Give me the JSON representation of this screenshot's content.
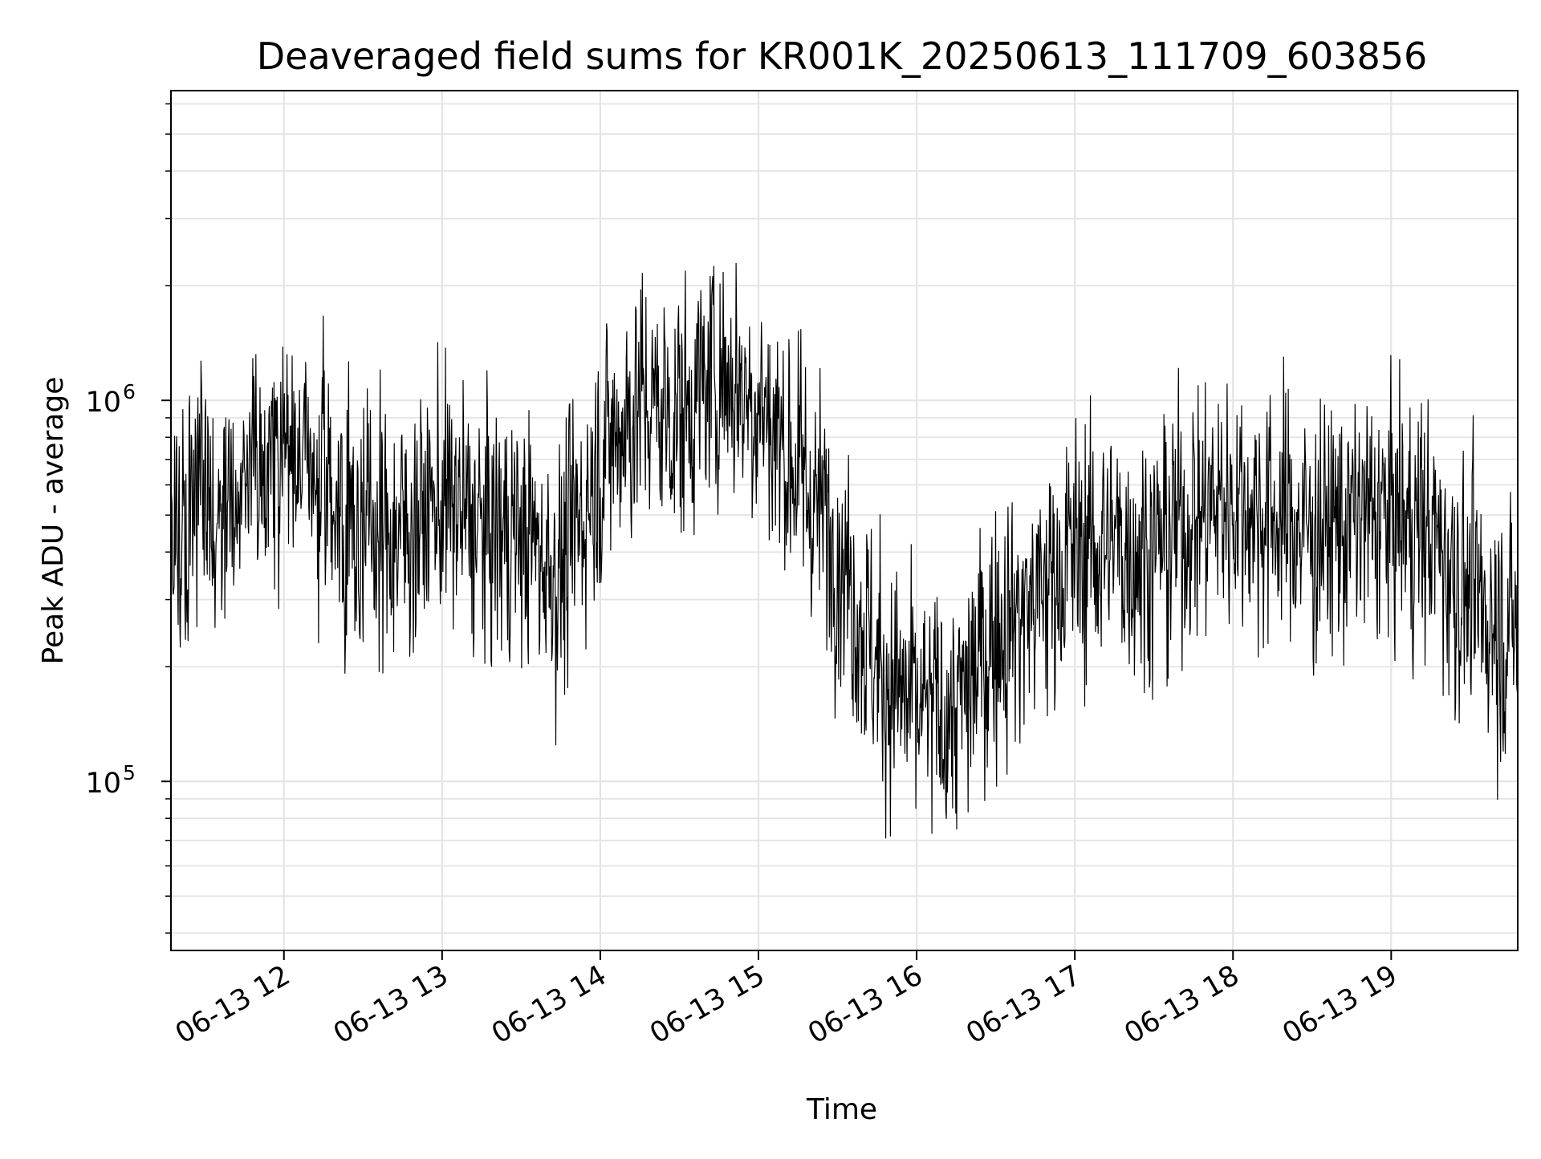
{
  "chart_data": {
    "type": "line",
    "title": "Deaveraged field sums for KR001K_20250613_111709_603856",
    "xlabel": "Time",
    "ylabel": "Peak ADU - average",
    "yscale": "log",
    "ylim": [
      36000,
      6500000
    ],
    "xlim": [
      "06-13 11:17:09",
      "06-13 19:48:00"
    ],
    "grid": true,
    "legend": "none",
    "line_color": "#000000",
    "x_ticks": [
      "06-13 12",
      "06-13 13",
      "06-13 14",
      "06-13 15",
      "06-13 16",
      "06-13 17",
      "06-13 18",
      "06-13 19"
    ],
    "y_ticks": [
      {
        "value": 100000,
        "base": "10",
        "exponent": "5"
      },
      {
        "value": 1000000,
        "base": "10",
        "exponent": "6"
      }
    ],
    "series": [
      {
        "x": [
          "06-13 11:17",
          "06-13 11:30",
          "06-13 11:45",
          "06-13 12:00",
          "06-13 12:15",
          "06-13 12:30",
          "06-13 12:45",
          "06-13 13:00",
          "06-13 13:15",
          "06-13 13:30",
          "06-13 13:45",
          "06-13 14:00",
          "06-13 14:15",
          "06-13 14:30",
          "06-13 14:45",
          "06-13 15:00",
          "06-13 15:15",
          "06-13 15:30",
          "06-13 15:45",
          "06-13 16:00",
          "06-13 16:15",
          "06-13 16:30",
          "06-13 16:45",
          "06-13 17:00",
          "06-13 17:15",
          "06-13 17:30",
          "06-13 17:45",
          "06-13 18:00",
          "06-13 18:15",
          "06-13 18:30",
          "06-13 18:45",
          "06-13 19:00",
          "06-13 19:15",
          "06-13 19:30",
          "06-13 19:45"
        ],
        "baseline": [
          500000,
          550000,
          600000,
          750000,
          600000,
          450000,
          450000,
          550000,
          450000,
          450000,
          350000,
          700000,
          1000000,
          900000,
          1200000,
          1000000,
          650000,
          420000,
          200000,
          150000,
          150000,
          250000,
          300000,
          400000,
          420000,
          400000,
          500000,
          550000,
          500000,
          450000,
          480000,
          500000,
          450000,
          300000,
          250000
        ]
      }
    ]
  }
}
